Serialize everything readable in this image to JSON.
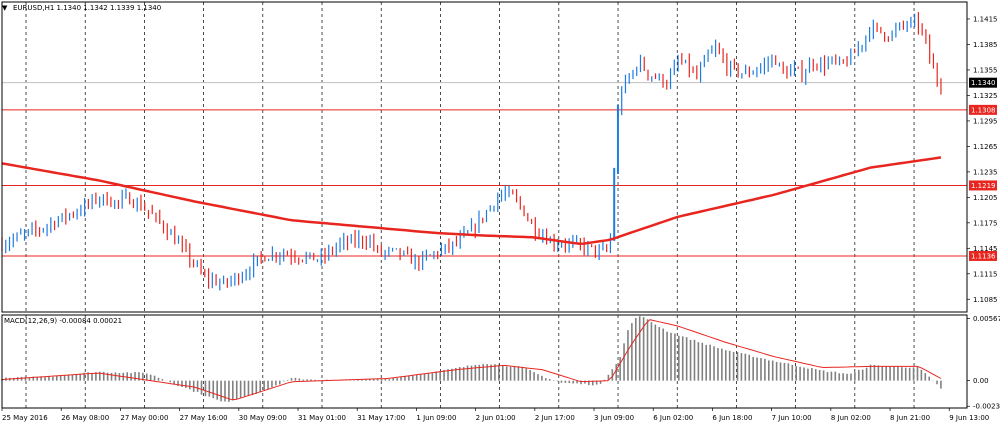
{
  "window": {
    "symbol_title": "EURUSD,H1  1.1340 1.1342 1.1339 1.1340",
    "dropdown_glyph": "▼"
  },
  "chart_data": [
    {
      "type": "candlestick",
      "title": "EURUSD,H1  1.1340 1.1342 1.1339 1.1340",
      "ylim": [
        1.107,
        1.1435
      ],
      "y_ticks": [
        "1.1415",
        "1.1385",
        "1.1355",
        "1.1325",
        "1.1295",
        "1.1265",
        "1.1235",
        "1.1205",
        "1.1175",
        "1.1145",
        "1.1115",
        "1.1085"
      ],
      "x_ticks": [
        "25 May 2016",
        "26 May 08:00",
        "27 May 00:00",
        "27 May 16:00",
        "30 May 09:00",
        "31 May 01:00",
        "31 May 17:00",
        "1 Jun 09:00",
        "2 Jun 01:00",
        "2 Jun 17:00",
        "3 Jun 09:00",
        "6 Jun 02:00",
        "6 Jun 18:00",
        "7 Jun 10:00",
        "8 Jun 02:00",
        "8 Jun 21:00",
        "9 Jun 13:00"
      ],
      "grid": "vertical dashed",
      "current_price": "1.1340",
      "horizontal_levels": [
        {
          "label": "1.1308",
          "value": 1.1308
        },
        {
          "label": "1.1219",
          "value": 1.1219
        },
        {
          "label": "1.1136",
          "value": 1.1136
        }
      ],
      "ma_color": "#e8261f",
      "level_color": "#e8261f",
      "bull_color": "#1e7be0",
      "bear_color": "#e8261f",
      "close_path": [
        [
          0,
          1.115
        ],
        [
          2,
          1.116
        ],
        [
          4,
          1.1168
        ],
        [
          6,
          1.118
        ],
        [
          8,
          1.119
        ],
        [
          10,
          1.1205
        ],
        [
          12,
          1.1198
        ],
        [
          13,
          1.1205
        ],
        [
          15,
          1.119
        ],
        [
          17,
          1.1168
        ],
        [
          19,
          1.114
        ],
        [
          21,
          1.111
        ],
        [
          23,
          1.1103
        ],
        [
          25,
          1.1115
        ],
        [
          27,
          1.1135
        ],
        [
          29,
          1.114
        ],
        [
          31,
          1.1135
        ],
        [
          33,
          1.1132
        ],
        [
          35,
          1.115
        ],
        [
          37,
          1.1155
        ],
        [
          38,
          1.1155
        ],
        [
          39,
          1.114
        ],
        [
          41,
          1.114
        ],
        [
          43,
          1.1128
        ],
        [
          45,
          1.114
        ],
        [
          47,
          1.115
        ],
        [
          49,
          1.117
        ],
        [
          50,
          1.1185
        ],
        [
          51,
          1.12
        ],
        [
          52,
          1.121
        ],
        [
          53,
          1.1205
        ],
        [
          54,
          1.119
        ],
        [
          55,
          1.117
        ],
        [
          57,
          1.1152
        ],
        [
          59,
          1.115
        ],
        [
          61,
          1.1145
        ],
        [
          62,
          1.114
        ],
        [
          63,
          1.1145
        ],
        [
          63.6,
          1.127
        ],
        [
          64,
          1.133
        ],
        [
          65,
          1.1345
        ],
        [
          66,
          1.1365
        ],
        [
          67,
          1.135
        ],
        [
          68,
          1.1345
        ],
        [
          69,
          1.134
        ],
        [
          70,
          1.1365
        ],
        [
          71,
          1.136
        ],
        [
          72,
          1.1345
        ],
        [
          73,
          1.137
        ],
        [
          74,
          1.138
        ],
        [
          75,
          1.136
        ],
        [
          76,
          1.1355
        ],
        [
          77,
          1.135
        ],
        [
          78,
          1.1355
        ],
        [
          79,
          1.136
        ],
        [
          80,
          1.137
        ],
        [
          81,
          1.135
        ],
        [
          82,
          1.1355
        ],
        [
          83,
          1.135
        ],
        [
          84,
          1.1365
        ],
        [
          85,
          1.136
        ],
        [
          86,
          1.1365
        ],
        [
          87,
          1.136
        ],
        [
          88,
          1.137
        ],
        [
          89,
          1.1385
        ],
        [
          90,
          1.1405
        ],
        [
          91,
          1.14
        ],
        [
          92,
          1.1395
        ],
        [
          93,
          1.1405
        ],
        [
          94,
          1.141
        ],
        [
          95,
          1.1408
        ],
        [
          95.5,
          1.1395
        ],
        [
          96,
          1.1375
        ],
        [
          96.5,
          1.1355
        ],
        [
          97,
          1.134
        ],
        [
          97.3,
          1.134
        ]
      ],
      "ma_path": [
        [
          0,
          1.1245
        ],
        [
          10,
          1.1225
        ],
        [
          20,
          1.12
        ],
        [
          30,
          1.1178
        ],
        [
          40,
          1.1168
        ],
        [
          45,
          1.1163
        ],
        [
          50,
          1.116
        ],
        [
          55,
          1.1158
        ],
        [
          60,
          1.115
        ],
        [
          63,
          1.1155
        ],
        [
          70,
          1.1182
        ],
        [
          80,
          1.1208
        ],
        [
          90,
          1.124
        ],
        [
          97.3,
          1.1252
        ]
      ]
    },
    {
      "type": "bar",
      "title": "MACD(12,26,9) -0.00084 0.00021",
      "indicator": "MACD(12,26,9)",
      "main_value": "-0.00084",
      "signal_value": "0.00021",
      "ylim": [
        -0.0025,
        0.006
      ],
      "y_ticks": [
        "0.00567",
        "0.00",
        "-0.00234"
      ],
      "histogram_path": [
        [
          0,
          0.0002
        ],
        [
          5,
          0.0004
        ],
        [
          10,
          0.0008
        ],
        [
          15,
          0.0007
        ],
        [
          20,
          -0.001
        ],
        [
          23,
          -0.002
        ],
        [
          27,
          -0.001
        ],
        [
          30,
          0.0002
        ],
        [
          35,
          0.0
        ],
        [
          40,
          0.0002
        ],
        [
          45,
          0.0008
        ],
        [
          50,
          0.0016
        ],
        [
          54,
          0.0012
        ],
        [
          56,
          0.0004
        ],
        [
          58,
          -0.0002
        ],
        [
          62,
          -0.0004
        ],
        [
          64,
          0.002
        ],
        [
          65,
          0.005
        ],
        [
          66,
          0.006
        ],
        [
          69,
          0.0045
        ],
        [
          72,
          0.0036
        ],
        [
          75,
          0.0028
        ],
        [
          80,
          0.0018
        ],
        [
          85,
          0.0009
        ],
        [
          88,
          0.0006
        ],
        [
          90,
          0.0014
        ],
        [
          95,
          0.0012
        ],
        [
          97.3,
          -0.0007
        ]
      ],
      "signal_path": [
        [
          0,
          0.0001
        ],
        [
          10,
          0.0007
        ],
        [
          20,
          -0.0006
        ],
        [
          24,
          -0.0018
        ],
        [
          30,
          -0.0001
        ],
        [
          40,
          0.0002
        ],
        [
          47,
          0.001
        ],
        [
          52,
          0.0014
        ],
        [
          56,
          0.001
        ],
        [
          60,
          -0.0001
        ],
        [
          63,
          0.0
        ],
        [
          65,
          0.003
        ],
        [
          67,
          0.0056
        ],
        [
          70,
          0.005
        ],
        [
          75,
          0.0035
        ],
        [
          80,
          0.0022
        ],
        [
          85,
          0.0012
        ],
        [
          90,
          0.0013
        ],
        [
          95,
          0.0013
        ],
        [
          97.3,
          0.0002
        ]
      ]
    }
  ]
}
